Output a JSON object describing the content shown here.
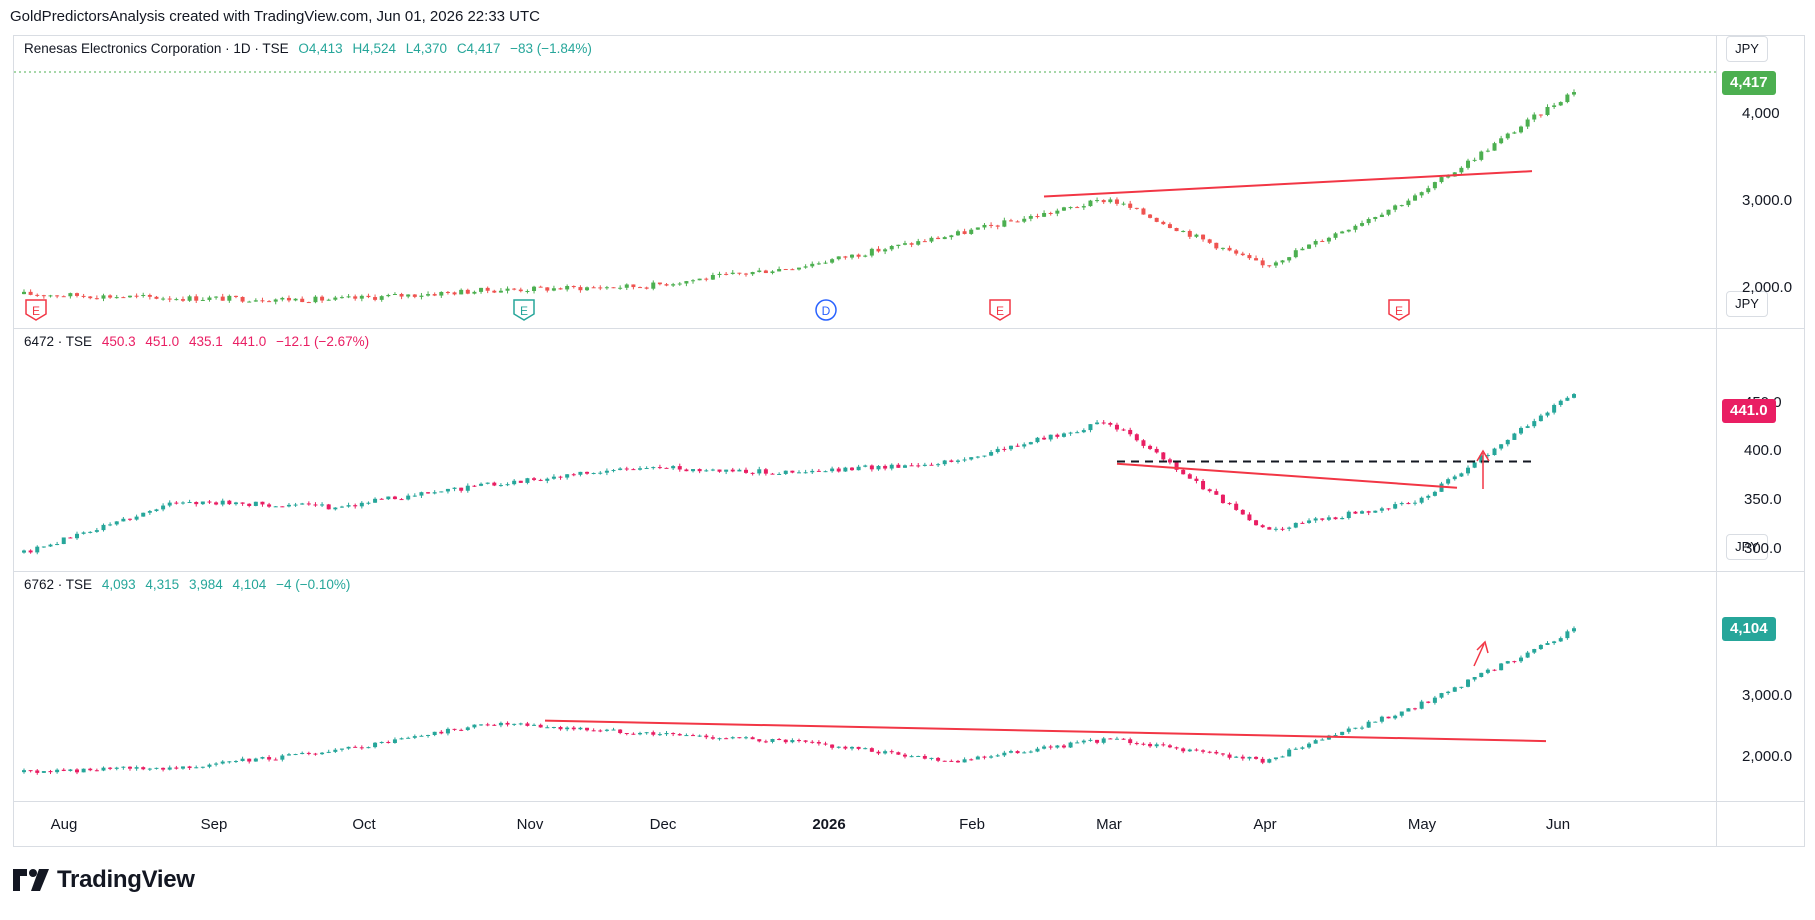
{
  "header": "GoldPredictorsAnalysis created with TradingView.com, Jun 01, 2026 22:33 UTC",
  "brand": "TradingView",
  "x_axis_labels": [
    "Aug",
    "Sep",
    "Oct",
    "Nov",
    "Dec",
    "2026",
    "Feb",
    "Mar",
    "Apr",
    "May",
    "Jun"
  ],
  "events": [
    "E",
    "E",
    "D",
    "E",
    "E"
  ],
  "colors": {
    "up_green": "#26a69a",
    "down_red": "#ef5350",
    "pink": "#e91e63",
    "trend_red": "#f23645",
    "dashed": "#131722"
  },
  "panes": [
    {
      "symbol": "Renesas Electronics Corporation · 1D · TSE",
      "open": "O4,413",
      "high": "H4,524",
      "low": "L4,370",
      "close": "C4,417",
      "change": "−83 (−1.84%)",
      "currency": "JPY",
      "last_price": "4,417",
      "ticks": [
        "4,000",
        "3,000.0",
        "2,000.0"
      ]
    },
    {
      "symbol": "6472 · TSE",
      "open": "450.3",
      "high": "451.0",
      "low": "435.1",
      "close": "441.0",
      "change": "−12.1 (−2.67%)",
      "currency": "JPY",
      "last_price": "441.0",
      "ticks": [
        "450.0",
        "400.0",
        "350.0",
        "300.0"
      ]
    },
    {
      "symbol": "6762 · TSE",
      "open": "4,093",
      "high": "4,315",
      "low": "3,984",
      "close": "4,104",
      "change": "−4 (−0.10%)",
      "currency": "JPY",
      "last_price": "4,104",
      "ticks": [
        "3,000.0",
        "2,000.0"
      ]
    }
  ],
  "chart_data": [
    {
      "type": "line",
      "ylim": [
        1700,
        4600
      ],
      "x": [
        "Aug",
        "Sep",
        "Oct",
        "Nov",
        "Dec",
        "Jan",
        "Feb",
        "Mar",
        "Apr",
        "May",
        "Jun"
      ],
      "series": [
        {
          "values": [
            1850,
            1800,
            1780,
            1900,
            1950,
            2200,
            2600,
            3050,
            2200,
            3100,
            4417
          ]
        }
      ],
      "trendline": {
        "from": [
          1030,
          3080
        ],
        "to": [
          1518,
          3400
        ]
      }
    },
    {
      "type": "line",
      "ylim": [
        290,
        470
      ],
      "x": [
        "Aug",
        "Sep",
        "Oct",
        "Nov",
        "Dec",
        "Jan",
        "Feb",
        "Mar",
        "Apr",
        "May",
        "Jun"
      ],
      "series": [
        {
          "values": [
            300,
            345,
            340,
            360,
            375,
            370,
            380,
            415,
            320,
            345,
            441
          ]
        }
      ],
      "trendline": {
        "from": [
          1103,
          378
        ],
        "to": [
          1443,
          357
        ]
      },
      "dashed_level": 380
    },
    {
      "type": "line",
      "ylim": [
        1500,
        4400
      ],
      "x": [
        "Aug",
        "Sep",
        "Oct",
        "Nov",
        "Dec",
        "Jan",
        "Feb",
        "Mar",
        "Apr",
        "May",
        "Jun"
      ],
      "series": [
        {
          "values": [
            1820,
            1900,
            2150,
            2600,
            2450,
            2300,
            2000,
            2350,
            2000,
            2900,
            4104
          ]
        }
      ],
      "trendline": {
        "from": [
          531,
          2650
        ],
        "to": [
          1532,
          2320
        ]
      }
    }
  ]
}
